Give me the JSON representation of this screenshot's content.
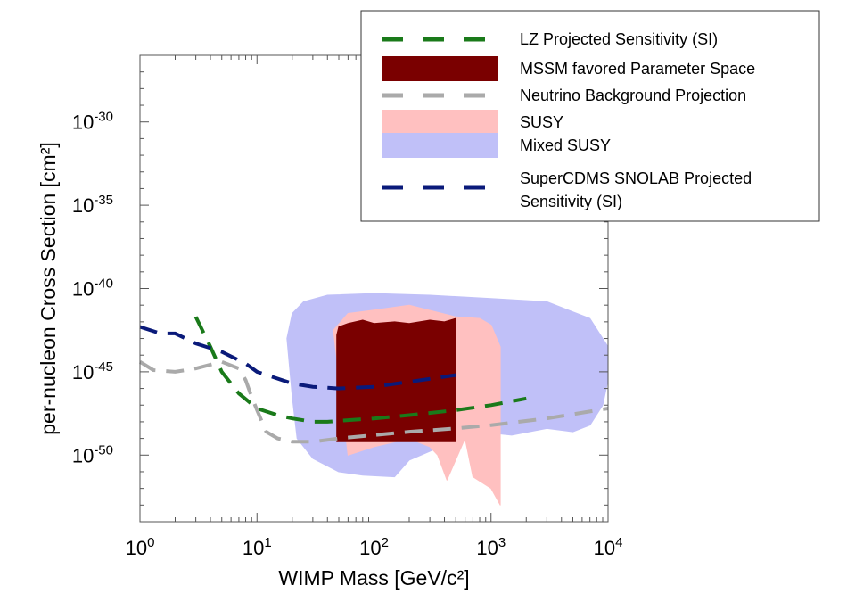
{
  "chart_data": {
    "type": "area",
    "xlabel": "WIMP Mass [GeV/c²]",
    "ylabel": "per-nucleon Cross Section [cm²]",
    "x_scale": "log",
    "y_scale": "log",
    "xlim": [
      1,
      10000
    ],
    "ylim": [
      1e-54,
      1e-26
    ],
    "x_ticks": [
      {
        "value": 1,
        "base": "10",
        "exp": "0"
      },
      {
        "value": 10,
        "base": "10",
        "exp": "1"
      },
      {
        "value": 100,
        "base": "10",
        "exp": "2"
      },
      {
        "value": 1000,
        "base": "10",
        "exp": "3"
      },
      {
        "value": 10000,
        "base": "10",
        "exp": "4"
      }
    ],
    "y_ticks": [
      {
        "value": 1e-30,
        "base": "10",
        "exp": "-30"
      },
      {
        "value": 1e-35,
        "base": "10",
        "exp": "-35"
      },
      {
        "value": 1e-40,
        "base": "10",
        "exp": "-40"
      },
      {
        "value": 1e-45,
        "base": "10",
        "exp": "-45"
      },
      {
        "value": 1e-50,
        "base": "10",
        "exp": "-50"
      }
    ],
    "grid": false,
    "legend_position": "top-right",
    "legend": [
      {
        "label": "LZ Projected Sensitivity (SI)",
        "style": "dashed",
        "color": "#1a7a1a"
      },
      {
        "label": "MSSM favored Parameter Space",
        "style": "filled",
        "color": "#7a0000"
      },
      {
        "label": "Neutrino Background Projection",
        "style": "dashed",
        "color": "#aaaaaa"
      },
      {
        "label": "SUSY",
        "style": "filled",
        "color": "#ffc0c0"
      },
      {
        "label": "Mixed SUSY",
        "style": "filled",
        "color": "#c0c0f8"
      },
      {
        "label": "SuperCDMS SNOLAB Projected Sensitivity (SI)",
        "style": "dashed",
        "color": "#0a1a7a"
      }
    ],
    "series": [
      {
        "name": "Mixed SUSY",
        "kind": "region",
        "color": "#c0c0f8",
        "x": [
          18,
          20,
          25,
          40,
          100,
          300,
          1000,
          3000,
          7000,
          10000,
          10000,
          9000,
          7000,
          5000,
          3000,
          1500,
          800,
          400,
          200,
          150,
          80,
          50,
          30,
          22,
          20,
          18
        ],
        "y": [
          -43.0,
          -41.5,
          -40.8,
          -40.4,
          -40.3,
          -40.4,
          -40.6,
          -40.8,
          -41.8,
          -43.5,
          -45.5,
          -47.0,
          -48.2,
          -48.6,
          -48.4,
          -48.8,
          -48.6,
          -49.4,
          -50.3,
          -51.3,
          -51.2,
          -51.0,
          -50.2,
          -49.0,
          -46.5,
          -43.0
        ]
      },
      {
        "name": "SUSY",
        "kind": "region",
        "color": "#ffc0c0",
        "x": [
          45,
          60,
          100,
          200,
          500,
          800,
          1000,
          1200,
          1200,
          1000,
          700,
          600,
          420,
          350,
          300,
          200,
          100,
          60,
          45
        ],
        "y": [
          -42.5,
          -41.5,
          -41.3,
          -41.0,
          -41.7,
          -41.8,
          -42.2,
          -43.5,
          -53.0,
          -52.0,
          -51.3,
          -49.0,
          -51.5,
          -50.0,
          -49.5,
          -49.0,
          -49.5,
          -50.0,
          -42.5
        ]
      },
      {
        "name": "MSSM favored Parameter Space",
        "kind": "region",
        "color": "#7a0000",
        "x": [
          48,
          50,
          60,
          80,
          100,
          150,
          200,
          300,
          400,
          500,
          500,
          48
        ],
        "y": [
          -42.8,
          -42.3,
          -42.1,
          -41.9,
          -42.1,
          -42.0,
          -42.1,
          -41.9,
          -42.0,
          -41.8,
          -49.2,
          -49.2
        ]
      },
      {
        "name": "LZ Projected Sensitivity (SI)",
        "kind": "line",
        "style": "dashed",
        "color": "#1a7a1a",
        "x": [
          3,
          4,
          5,
          7,
          10,
          15,
          20,
          30,
          40,
          60,
          100,
          200,
          500,
          1000,
          2000
        ],
        "y": [
          -41.7,
          -43.5,
          -45.0,
          -46.3,
          -47.2,
          -47.6,
          -47.8,
          -48.0,
          -48.0,
          -47.9,
          -47.8,
          -47.6,
          -47.3,
          -47.0,
          -46.6
        ]
      },
      {
        "name": "Neutrino Background Projection",
        "kind": "line",
        "style": "dashed",
        "color": "#aaaaaa",
        "x": [
          1,
          1.3,
          2,
          3,
          5,
          7,
          8,
          9,
          10,
          12,
          15,
          20,
          30,
          50,
          100,
          200,
          500,
          1000,
          3000,
          10000
        ],
        "y": [
          -44.4,
          -44.9,
          -45.0,
          -44.8,
          -44.4,
          -44.8,
          -45.5,
          -46.5,
          -47.3,
          -48.6,
          -49.0,
          -49.2,
          -49.2,
          -49.0,
          -48.8,
          -48.6,
          -48.4,
          -48.2,
          -47.8,
          -47.2
        ]
      },
      {
        "name": "SuperCDMS SNOLAB Projected Sensitivity (SI)",
        "kind": "line",
        "style": "dashed",
        "color": "#0a1a7a",
        "x": [
          1,
          1.5,
          2,
          3,
          5,
          8,
          10,
          20,
          30,
          50,
          100,
          200,
          500
        ],
        "y": [
          -42.3,
          -42.7,
          -42.7,
          -43.3,
          -43.8,
          -44.5,
          -45.0,
          -45.7,
          -45.9,
          -46.0,
          -45.9,
          -45.6,
          -45.2
        ]
      }
    ]
  }
}
